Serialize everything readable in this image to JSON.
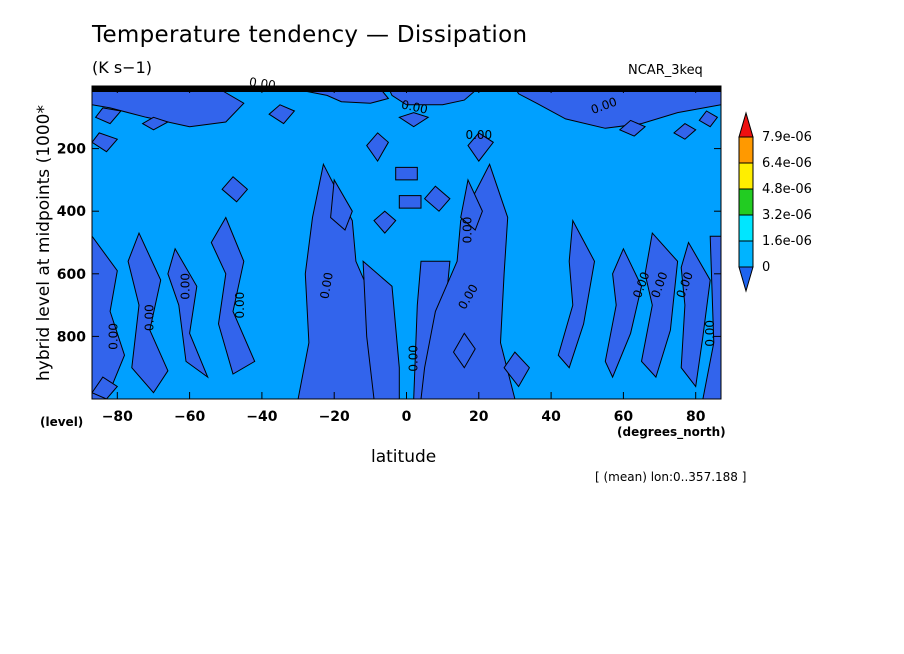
{
  "title": "Temperature tendency — Dissipation",
  "units": "(K s−1)",
  "model_label": "NCAR_3keq",
  "ylabel": "hybrid level at midpoints (1000*",
  "yunit": "(level)",
  "xlabel": "latitude",
  "xunit": "(degrees_north)",
  "footnote": "[ (mean) lon:0..357.188 ]",
  "chart_data": {
    "type": "heatmap",
    "title": "Temperature tendency — Dissipation",
    "xlabel": "latitude",
    "ylabel": "hybrid level at midpoints (1000*",
    "xlim": [
      -87,
      87
    ],
    "ylim": [
      1000,
      0
    ],
    "x_ticks": [
      -80,
      -60,
      -40,
      -20,
      0,
      20,
      40,
      60,
      80
    ],
    "y_ticks": [
      200,
      400,
      600,
      800
    ],
    "contour_label": "0.00",
    "colorbar": {
      "levels": [
        "0",
        "1.6e-06",
        "3.2e-06",
        "4.8e-06",
        "6.4e-06",
        "7.9e-06"
      ],
      "colors": [
        "#1e64f0",
        "#00b4ff",
        "#00e6ff",
        "#22cc22",
        "#ffee00",
        "#ff9900",
        "#ee1111"
      ]
    },
    "field_colors": {
      "negative": "#3264ec",
      "low": "#00a0ff"
    }
  }
}
